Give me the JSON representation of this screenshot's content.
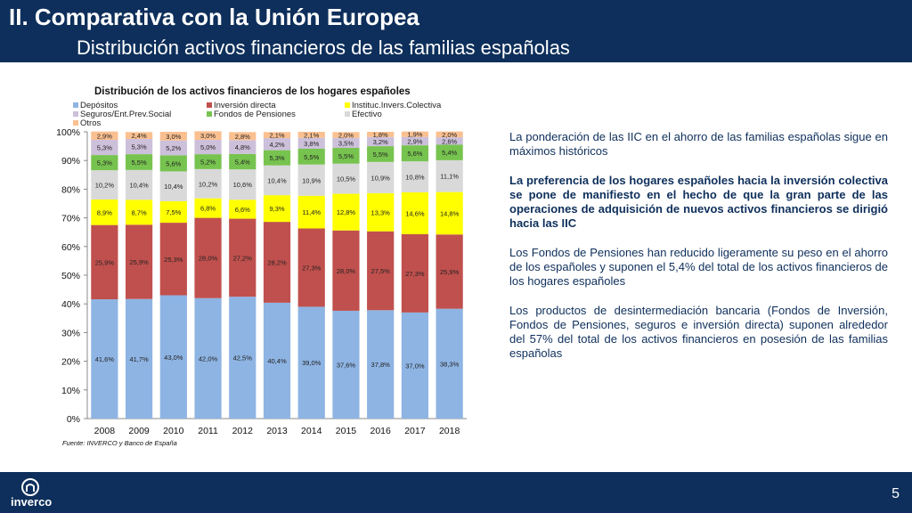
{
  "header": {
    "title": "II. Comparativa con la Unión Europea",
    "subtitle": "Distribución activos financieros de las familias españolas"
  },
  "footer": {
    "logo_text": "inverco",
    "page_number": "5"
  },
  "source": "Fuente: INVERCO y Banco de España",
  "text_panel": {
    "p1": "La ponderación de las IIC en el ahorro de las familias españolas sigue en máximos históricos",
    "p2": "La preferencia de los hogares españoles hacia la inversión colectiva se pone de manifiesto en el hecho de que la gran parte de las operaciones de adquisición de nuevos activos financieros se dirigió hacia las IIC",
    "p3": "Los Fondos de Pensiones han reducido ligeramente su peso en el ahorro de los españoles y suponen el 5,4% del total de los activos financieros de los hogares españoles",
    "p4": "Los productos de desintermediación bancaria (Fondos de Inversión, Fondos de Pensiones, seguros e inversión directa) suponen alrededor del 57% del total de los activos financieros en posesión de las familias españolas"
  },
  "chart_data": {
    "type": "bar",
    "stacked": true,
    "title": "Distribución  de los activos financieros de los hogares españoles",
    "categories": [
      "2008",
      "2009",
      "2010",
      "2011",
      "2012",
      "2013",
      "2014",
      "2015",
      "2016",
      "2017",
      "2018"
    ],
    "ylim": [
      0,
      100
    ],
    "yticks": [
      "0%",
      "10%",
      "20%",
      "30%",
      "40%",
      "50%",
      "60%",
      "70%",
      "80%",
      "90%",
      "100%"
    ],
    "legend_position": "top",
    "series": [
      {
        "name": "Depósitos",
        "color": "#8eb4e3",
        "values": [
          41.6,
          41.7,
          43.0,
          42.0,
          42.5,
          40.4,
          39.0,
          37.6,
          37.8,
          37.0,
          38.3
        ],
        "labels": [
          "41,6%",
          "41,7%",
          "43,0%",
          "42,0%",
          "42,5%",
          "40,4%",
          "39,0%",
          "37,6%",
          "37,8%",
          "37,0%",
          "38,3%"
        ]
      },
      {
        "name": "Inversión directa",
        "color": "#c0504d",
        "values": [
          25.9,
          25.9,
          25.3,
          28.0,
          27.2,
          28.2,
          27.3,
          28.0,
          27.5,
          27.3,
          25.9
        ],
        "labels": [
          "25,9%",
          "25,9%",
          "25,3%",
          "28,0%",
          "27,2%",
          "28,2%",
          "27,3%",
          "28,0%",
          "27,5%",
          "27,3%",
          "25,9%"
        ]
      },
      {
        "name": "Instituc.Invers.Colectiva",
        "color": "#ffff00",
        "values": [
          8.9,
          8.7,
          7.5,
          6.8,
          6.6,
          9.3,
          11.4,
          12.8,
          13.3,
          14.6,
          14.8
        ],
        "labels": [
          "8,9%",
          "8,7%",
          "7,5%",
          "6,8%",
          "6,6%",
          "9,3%",
          "11,4%",
          "12,8%",
          "13,3%",
          "14,6%",
          "14,8%"
        ]
      },
      {
        "name": "Efectivo",
        "color": "#d9d9d9",
        "values": [
          10.2,
          10.4,
          10.4,
          10.2,
          10.6,
          10.4,
          10.9,
          10.5,
          10.9,
          10.8,
          11.1
        ],
        "labels": [
          "10,2%",
          "10,4%",
          "10,4%",
          "10,2%",
          "10,6%",
          "10,4%",
          "10,9%",
          "10,5%",
          "10,9%",
          "10,8%",
          "11,1%"
        ]
      },
      {
        "name": "Fondos de Pensiones",
        "color": "#77c34f",
        "values": [
          5.3,
          5.5,
          5.6,
          5.2,
          5.4,
          5.3,
          5.5,
          5.5,
          5.5,
          5.6,
          5.4
        ],
        "labels": [
          "5,3%",
          "5,5%",
          "5,6%",
          "5,2%",
          "5,4%",
          "5,3%",
          "5,5%",
          "5,5%",
          "5,5%",
          "5,6%",
          "5,4%"
        ]
      },
      {
        "name": "Seguros/Ent.Prev.Social",
        "color": "#ccc0da",
        "values": [
          5.3,
          5.3,
          5.2,
          5.0,
          4.8,
          4.2,
          3.8,
          3.5,
          3.2,
          2.9,
          2.6
        ],
        "labels": [
          "5,3%",
          "5,3%",
          "5,2%",
          "5,0%",
          "4,8%",
          "4,2%",
          "3,8%",
          "3,5%",
          "3,2%",
          "2,9%",
          "2,6%"
        ]
      },
      {
        "name": "Otros",
        "color": "#fac090",
        "values": [
          2.9,
          2.4,
          3.0,
          3.0,
          2.8,
          2.1,
          2.1,
          2.0,
          1.8,
          1.9,
          2.0
        ],
        "labels": [
          "2,9%",
          "2,4%",
          "3,0%",
          "3,0%",
          "2,8%",
          "2,1%",
          "2,1%",
          "2,0%",
          "1,8%",
          "1,9%",
          "2,0%"
        ]
      }
    ],
    "legend_order": [
      "Depósitos",
      "Inversión directa",
      "Instituc.Invers.Colectiva",
      "Seguros/Ent.Prev.Social",
      "Fondos de Pensiones",
      "Efectivo",
      "Otros"
    ]
  }
}
